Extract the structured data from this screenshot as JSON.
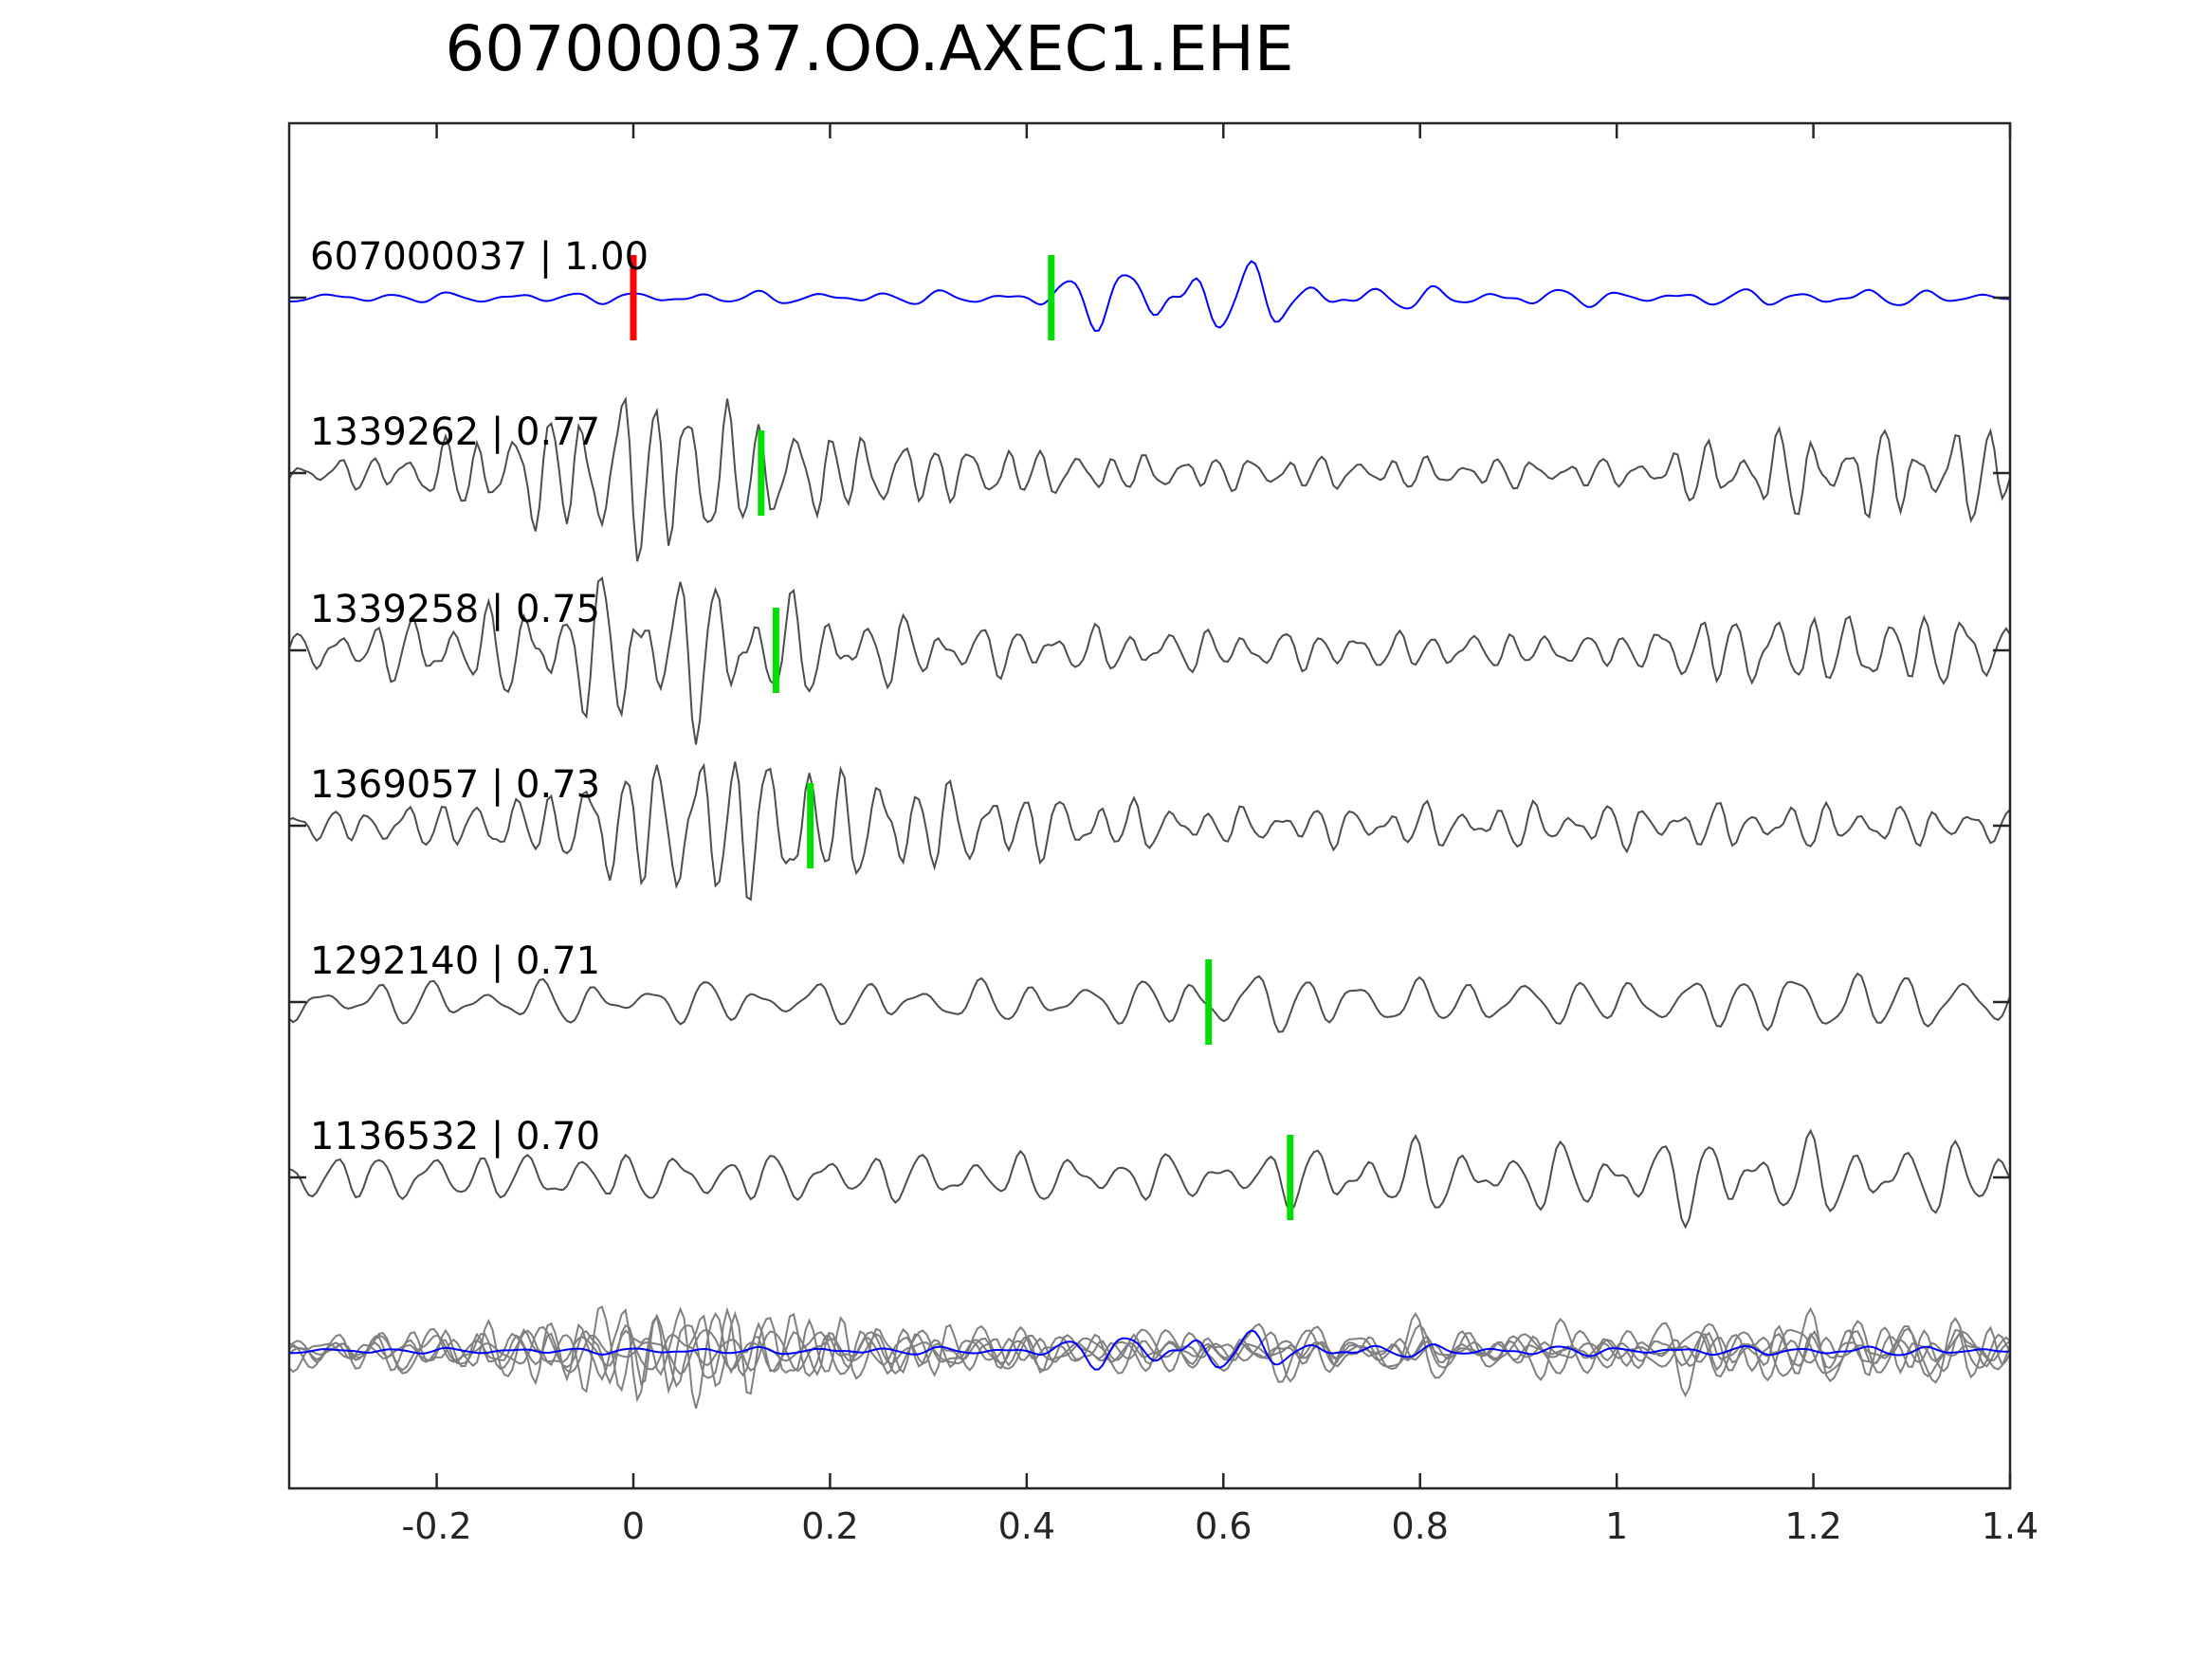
{
  "chart_data": {
    "type": "line",
    "title": "607000037.OO.AXEC1.EHE",
    "xlabel": "",
    "ylabel": "",
    "xlim": [
      -0.35,
      1.4
    ],
    "xticks": [
      -0.2,
      0,
      0.2,
      0.4,
      0.6,
      0.8,
      1,
      1.2,
      1.4
    ],
    "xtick_labels": [
      "-0.2",
      "0",
      "0.2",
      "0.4",
      "0.6",
      "0.8",
      "1",
      "1.2",
      "1.4"
    ],
    "grid": false,
    "colors": {
      "template": "#0000ff",
      "match": "#4d4d4d",
      "overlay": "#808080",
      "origin_marker": "#ff0000",
      "pick_marker": "#00dd00"
    },
    "series": [
      {
        "label": "607000037 | 1.00",
        "origin_time": 0.0,
        "pick_time": 0.425,
        "envelope": [
          [
            -0.35,
            0.1
          ],
          [
            0.4,
            0.15
          ],
          [
            0.45,
            0.5
          ],
          [
            0.55,
            1.0
          ],
          [
            0.65,
            0.6
          ],
          [
            0.75,
            0.25
          ],
          [
            1.05,
            0.15
          ],
          [
            1.25,
            0.2
          ],
          [
            1.4,
            0.1
          ]
        ],
        "dominant_frequency": 16
      },
      {
        "label": "1339262 | 0.77",
        "pick_time": 0.13,
        "envelope": [
          [
            -0.35,
            0.12
          ],
          [
            -0.25,
            0.2
          ],
          [
            -0.1,
            0.6
          ],
          [
            0.0,
            1.0
          ],
          [
            0.05,
            1.0
          ],
          [
            0.15,
            0.55
          ],
          [
            0.3,
            0.35
          ],
          [
            0.5,
            0.2
          ],
          [
            1.0,
            0.15
          ],
          [
            1.15,
            0.45
          ],
          [
            1.4,
            0.5
          ]
        ],
        "dominant_frequency": 28
      },
      {
        "label": "1339258 | 0.75",
        "pick_time": 0.145,
        "envelope": [
          [
            -0.35,
            0.2
          ],
          [
            -0.1,
            0.6
          ],
          [
            0.0,
            1.0
          ],
          [
            0.05,
            1.0
          ],
          [
            0.2,
            0.5
          ],
          [
            0.35,
            0.3
          ],
          [
            0.6,
            0.25
          ],
          [
            1.0,
            0.2
          ],
          [
            1.1,
            0.45
          ],
          [
            1.4,
            0.45
          ]
        ],
        "dominant_frequency": 26
      },
      {
        "label": "1369057 | 0.73",
        "pick_time": 0.18,
        "envelope": [
          [
            -0.35,
            0.15
          ],
          [
            -0.1,
            0.35
          ],
          [
            0.0,
            0.8
          ],
          [
            0.1,
            1.0
          ],
          [
            0.2,
            0.7
          ],
          [
            0.4,
            0.4
          ],
          [
            0.6,
            0.2
          ],
          [
            0.8,
            0.25
          ],
          [
            1.2,
            0.25
          ],
          [
            1.4,
            0.2
          ]
        ],
        "dominant_frequency": 27
      },
      {
        "label": "1292140 | 0.71",
        "pick_time": 0.585,
        "envelope": [
          [
            -0.35,
            0.45
          ],
          [
            0.5,
            0.45
          ],
          [
            0.6,
            0.7
          ],
          [
            0.8,
            0.5
          ],
          [
            1.05,
            0.5
          ],
          [
            1.2,
            0.75
          ],
          [
            1.4,
            0.5
          ]
        ],
        "dominant_frequency": 18
      },
      {
        "label": "1136532 | 0.70",
        "pick_time": 0.668,
        "envelope": [
          [
            -0.35,
            0.45
          ],
          [
            0.4,
            0.45
          ],
          [
            0.6,
            0.4
          ],
          [
            0.75,
            0.7
          ],
          [
            0.9,
            0.55
          ],
          [
            1.1,
            0.8
          ],
          [
            1.4,
            0.6
          ]
        ],
        "dominant_frequency": 20
      }
    ]
  }
}
